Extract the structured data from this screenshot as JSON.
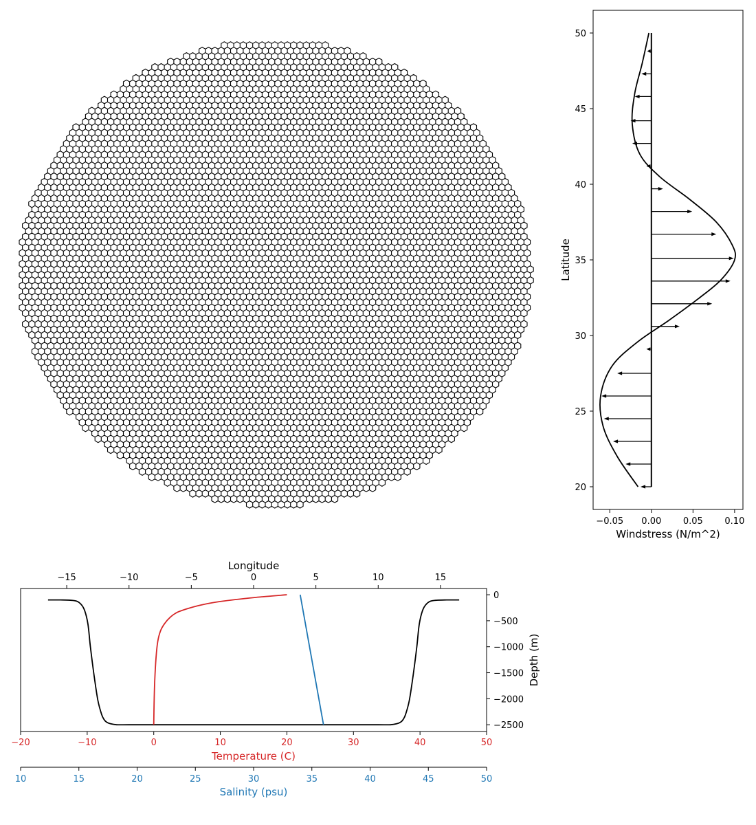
{
  "chart_data": [
    {
      "type": "mesh",
      "description_shown": "hexagonal ocean mesh domain",
      "cell_shape": "hexagon",
      "cell_fill": "#ffffff",
      "cell_stroke": "#000000",
      "axes_visible": false
    },
    {
      "type": "line",
      "xlabel": "Windstress (N/m^2)",
      "ylabel": "Latitude",
      "xlim": [
        -0.07,
        0.11
      ],
      "ylim": [
        18.5,
        51.5
      ],
      "xticks": [
        -0.05,
        0.0,
        0.05,
        0.1
      ],
      "xtick_labels": [
        "−0.05",
        "0.00",
        "0.05",
        "0.10"
      ],
      "yticks": [
        20,
        25,
        30,
        35,
        40,
        45,
        50
      ],
      "ytick_labels": [
        "20",
        "25",
        "30",
        "35",
        "40",
        "45",
        "50"
      ],
      "series": [
        {
          "style": "line",
          "color": "#000000",
          "x": [
            -0.016,
            -0.041,
            -0.058,
            -0.061,
            -0.047,
            -0.016,
            0.021,
            0.058,
            0.084,
            0.1,
            0.097,
            0.078,
            0.046,
            0.01,
            -0.014,
            -0.023,
            -0.02,
            -0.011,
            -0.003
          ],
          "y": [
            20,
            22,
            24,
            26,
            28,
            29.6,
            31,
            32.5,
            33.7,
            35,
            36,
            37.5,
            39,
            40.5,
            42,
            44,
            46,
            48,
            50
          ]
        }
      ],
      "vectors": {
        "color": "#000000",
        "y": [
          20.0,
          21.5,
          23.0,
          24.5,
          26.0,
          27.5,
          29.1,
          30.6,
          32.1,
          33.6,
          35.1,
          36.7,
          38.2,
          39.7,
          41.2,
          42.7,
          44.2,
          45.8,
          47.3,
          48.8
        ],
        "u": [
          -0.013,
          -0.031,
          -0.046,
          -0.057,
          -0.06,
          -0.041,
          -0.006,
          0.034,
          0.073,
          0.095,
          0.099,
          0.078,
          0.049,
          0.014,
          -0.006,
          -0.023,
          -0.025,
          -0.02,
          -0.012,
          -0.005
        ]
      },
      "vertical_line_x": 0.0
    },
    {
      "type": "line",
      "xlabel_top": "Longitude",
      "xticks_top": [
        -15,
        -10,
        -5,
        0,
        5,
        10,
        15
      ],
      "xtick_labels_top": [
        "−15",
        "−10",
        "−5",
        "0",
        "5",
        "10",
        "15"
      ],
      "xlim_top": [
        -18.7,
        18.7
      ],
      "ylabel": "Depth (m)",
      "ylim": [
        -2630,
        120
      ],
      "yticks": [
        0,
        -500,
        -1000,
        -1500,
        -2000,
        -2500
      ],
      "ytick_labels": [
        "0",
        "−500",
        "−1000",
        "−1500",
        "−2000",
        "−2500"
      ],
      "xlabel_temperature": "Temperature (C)",
      "xlim_temperature": [
        -20,
        50
      ],
      "xticks_temperature": [
        -20,
        -10,
        0,
        10,
        20,
        30,
        40,
        50
      ],
      "xtick_labels_temperature": [
        "−20",
        "−10",
        "0",
        "10",
        "20",
        "30",
        "40",
        "50"
      ],
      "xlabel_salinity": "Salinity (psu)",
      "xlim_salinity": [
        10,
        50
      ],
      "xticks_salinity": [
        10,
        15,
        20,
        25,
        30,
        35,
        40,
        45,
        50
      ],
      "xtick_labels_salinity": [
        "10",
        "15",
        "20",
        "25",
        "30",
        "35",
        "40",
        "45",
        "50"
      ],
      "series": [
        {
          "style": "bathymetry",
          "color": "#000000",
          "x_longitude": [
            -16.5,
            -15.5,
            -14.5,
            -14.0,
            -13.6,
            -13.3,
            -13.1,
            -12.8,
            -12.5,
            -12.2,
            -12.0,
            -11.8,
            -11.5,
            -11.0,
            -10.0,
            -8.0,
            -5.0,
            0.0,
            5.0,
            8.0,
            10.0,
            11.0,
            11.5,
            11.8,
            12.0,
            12.2,
            12.5,
            12.8,
            13.1,
            13.3,
            13.6,
            14.0,
            14.5,
            15.5,
            16.5
          ],
          "depth": [
            -100,
            -100,
            -110,
            -150,
            -280,
            -560,
            -1000,
            -1560,
            -2030,
            -2300,
            -2400,
            -2450,
            -2480,
            -2500,
            -2500,
            -2500,
            -2500,
            -2500,
            -2500,
            -2500,
            -2500,
            -2500,
            -2480,
            -2450,
            -2400,
            -2300,
            -2030,
            -1560,
            -1000,
            -560,
            -280,
            -150,
            -110,
            -100,
            -100
          ]
        },
        {
          "style": "temperature",
          "color": "#d62728",
          "temperature": [
            20.0,
            15.0,
            10.0,
            7.0,
            5.0,
            3.5,
            2.5,
            1.6,
            1.0,
            0.6,
            0.35,
            0.15,
            0.05,
            0.0
          ],
          "depth": [
            0,
            -55,
            -130,
            -200,
            -270,
            -340,
            -430,
            -560,
            -700,
            -900,
            -1200,
            -1650,
            -2100,
            -2500
          ]
        },
        {
          "style": "salinity",
          "color": "#1f77b4",
          "salinity": [
            34.0,
            36.0
          ],
          "depth": [
            0,
            -2500
          ]
        }
      ]
    }
  ]
}
